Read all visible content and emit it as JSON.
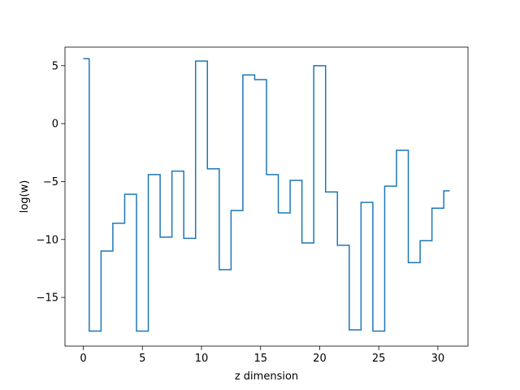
{
  "chart_data": {
    "type": "line",
    "drawstyle": "steps-post",
    "title": "",
    "xlabel": "z dimension",
    "ylabel": "log(w)",
    "xlim": [
      -1.55,
      32.55
    ],
    "ylim": [
      -19.2,
      6.6
    ],
    "xticks": [
      0,
      5,
      10,
      15,
      20,
      25,
      30
    ],
    "xtick_labels": [
      "0",
      "5",
      "10",
      "15",
      "20",
      "25",
      "30"
    ],
    "yticks": [
      5,
      0,
      -5,
      -10,
      -15
    ],
    "ytick_labels": [
      "5",
      "0",
      "−5",
      "−10",
      "−15"
    ],
    "grid": false,
    "legend": "none",
    "series": [
      {
        "color": "#1f77b4",
        "x": [
          0,
          0.5,
          1.5,
          2.5,
          3.5,
          4.5,
          5.5,
          6.5,
          7.5,
          8.5,
          9.5,
          10.5,
          11.5,
          12.5,
          13.5,
          14.5,
          15.5,
          16.5,
          17.5,
          18.5,
          19.5,
          20.5,
          21.5,
          22.5,
          23.5,
          24.5,
          25.5,
          26.5,
          27.5,
          28.5,
          29.5,
          30.5,
          31
        ],
        "y": [
          5.6,
          -17.9,
          -11.0,
          -8.6,
          -6.1,
          -17.9,
          -4.4,
          -9.8,
          -4.1,
          -9.9,
          5.4,
          -3.9,
          -12.6,
          -7.5,
          4.2,
          3.8,
          -4.4,
          -7.7,
          -4.9,
          -10.3,
          5.0,
          -5.9,
          -10.5,
          -17.8,
          -6.8,
          -17.9,
          -5.4,
          -2.3,
          -12.0,
          -10.1,
          -7.3,
          -5.8,
          -5.8
        ]
      }
    ]
  }
}
